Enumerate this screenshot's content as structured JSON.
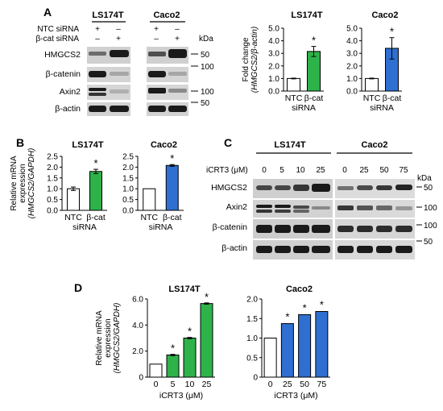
{
  "panels": {
    "A": "A",
    "B": "B",
    "C": "C",
    "D": "D"
  },
  "blot_a": {
    "cell_lines": [
      "LS174T",
      "Caco2"
    ],
    "treatments": [
      {
        "label": "NTC siRNA",
        "signs": [
          "+",
          "–",
          "+",
          "–"
        ]
      },
      {
        "label": "β-cat siRNA",
        "signs": [
          "–",
          "+",
          "–",
          "+"
        ]
      }
    ],
    "kda_label": "kDa",
    "proteins": [
      "HMGCS2",
      "β-catenin",
      "Axin2",
      "β-actin"
    ],
    "markers": [
      "50",
      "100",
      "100",
      "50"
    ]
  },
  "blot_c": {
    "cell_lines": [
      "LS174T",
      "Caco2"
    ],
    "dose_label": "iCRT3 (μM)",
    "doses_left": [
      "0",
      "5",
      "10",
      "25"
    ],
    "doses_right": [
      "0",
      "25",
      "50",
      "75"
    ],
    "kda_label": "kDa",
    "proteins": [
      "HMGCS2",
      "Axin2",
      "β-catenin",
      "β-actin"
    ],
    "markers": [
      "50",
      "100",
      "100",
      "50"
    ]
  },
  "chart_data": [
    {
      "id": "A-LS174T",
      "type": "bar",
      "title": "LS174T",
      "categories": [
        "NTC",
        "β-cat"
      ],
      "category_sublabel": "siRNA",
      "values": [
        1.0,
        3.15
      ],
      "errors": [
        0.03,
        0.4
      ],
      "significance": [
        "",
        "*"
      ],
      "colors": [
        "#ffffff",
        "#2db34a"
      ],
      "ylabel": "Fold change",
      "ylabel2": "(HMGCS2/β-actin)",
      "ylim": [
        0,
        5.0
      ],
      "ticks": [
        "0.0",
        "1.0",
        "2.0",
        "3.0",
        "4.0",
        "5.0"
      ]
    },
    {
      "id": "A-Caco2",
      "type": "bar",
      "title": "Caco2",
      "categories": [
        "NTC",
        "β-cat"
      ],
      "category_sublabel": "siRNA",
      "values": [
        1.0,
        3.4
      ],
      "errors": [
        0.03,
        0.85
      ],
      "significance": [
        "",
        "*"
      ],
      "colors": [
        "#ffffff",
        "#2e6fd1"
      ],
      "ylabel": "",
      "ylabel2": "",
      "ylim": [
        0,
        5.0
      ],
      "ticks": [
        "0.0",
        "1.0",
        "2.0",
        "3.0",
        "4.0",
        "5.0"
      ]
    },
    {
      "id": "B-LS174T",
      "type": "bar",
      "title": "LS174T",
      "categories": [
        "NTC",
        "β-cat"
      ],
      "category_sublabel": "siRNA",
      "values": [
        1.0,
        1.8
      ],
      "errors": [
        0.08,
        0.1
      ],
      "significance": [
        "",
        "*"
      ],
      "colors": [
        "#ffffff",
        "#2db34a"
      ],
      "ylabel": "Relative mRNA",
      "ylabel2": "expression",
      "ylabel3": "(HMGCS2/GAPDH)",
      "ylim": [
        0,
        2.5
      ],
      "ticks": [
        "0.0",
        "0.5",
        "1.0",
        "1.5",
        "2.0",
        "2.5"
      ]
    },
    {
      "id": "B-Caco2",
      "type": "bar",
      "title": "Caco2",
      "categories": [
        "NTC",
        "β-cat"
      ],
      "category_sublabel": "siRNA",
      "values": [
        1.0,
        2.08
      ],
      "errors": [
        0.02,
        0.04
      ],
      "significance": [
        "",
        "*"
      ],
      "colors": [
        "#ffffff",
        "#2e6fd1"
      ],
      "ylabel": "",
      "ylabel2": "",
      "ylim": [
        0,
        2.5
      ],
      "ticks": [
        "0.0",
        "0.5",
        "1.0",
        "1.5",
        "2.0",
        "2.5"
      ]
    },
    {
      "id": "D-LS174T",
      "type": "bar",
      "title": "LS174T",
      "categories": [
        "0",
        "5",
        "10",
        "25"
      ],
      "values": [
        1.0,
        1.7,
        3.0,
        5.65
      ],
      "errors": [
        0.02,
        0.05,
        0.05,
        0.05
      ],
      "significance": [
        "",
        "*",
        "*",
        "*"
      ],
      "colors": [
        "#ffffff",
        "#2db34a",
        "#2db34a",
        "#2db34a"
      ],
      "ylabel": "Relative mRNA",
      "ylabel2": "expression",
      "ylabel3": "(HMGCS2/GAPDH)",
      "xlabel": "iCRT3 (μM)",
      "ylim": [
        0,
        6.0
      ],
      "ticks": [
        "0",
        "2.0",
        "4.0",
        "6.0"
      ]
    },
    {
      "id": "D-Caco2",
      "type": "bar",
      "title": "Caco2",
      "categories": [
        "0",
        "25",
        "50",
        "75"
      ],
      "values": [
        1.0,
        1.37,
        1.6,
        1.68
      ],
      "errors": [
        0.01,
        0.02,
        0.02,
        0.02
      ],
      "significance": [
        "",
        "*",
        "*",
        "*"
      ],
      "colors": [
        "#ffffff",
        "#2e6fd1",
        "#2e6fd1",
        "#2e6fd1"
      ],
      "ylabel": "",
      "ylabel2": "",
      "xlabel": "iCRT3 (μM)",
      "ylim": [
        0,
        2.0
      ],
      "ticks": [
        "0",
        "0.5",
        "1.0",
        "1.5",
        "2.0"
      ]
    }
  ]
}
